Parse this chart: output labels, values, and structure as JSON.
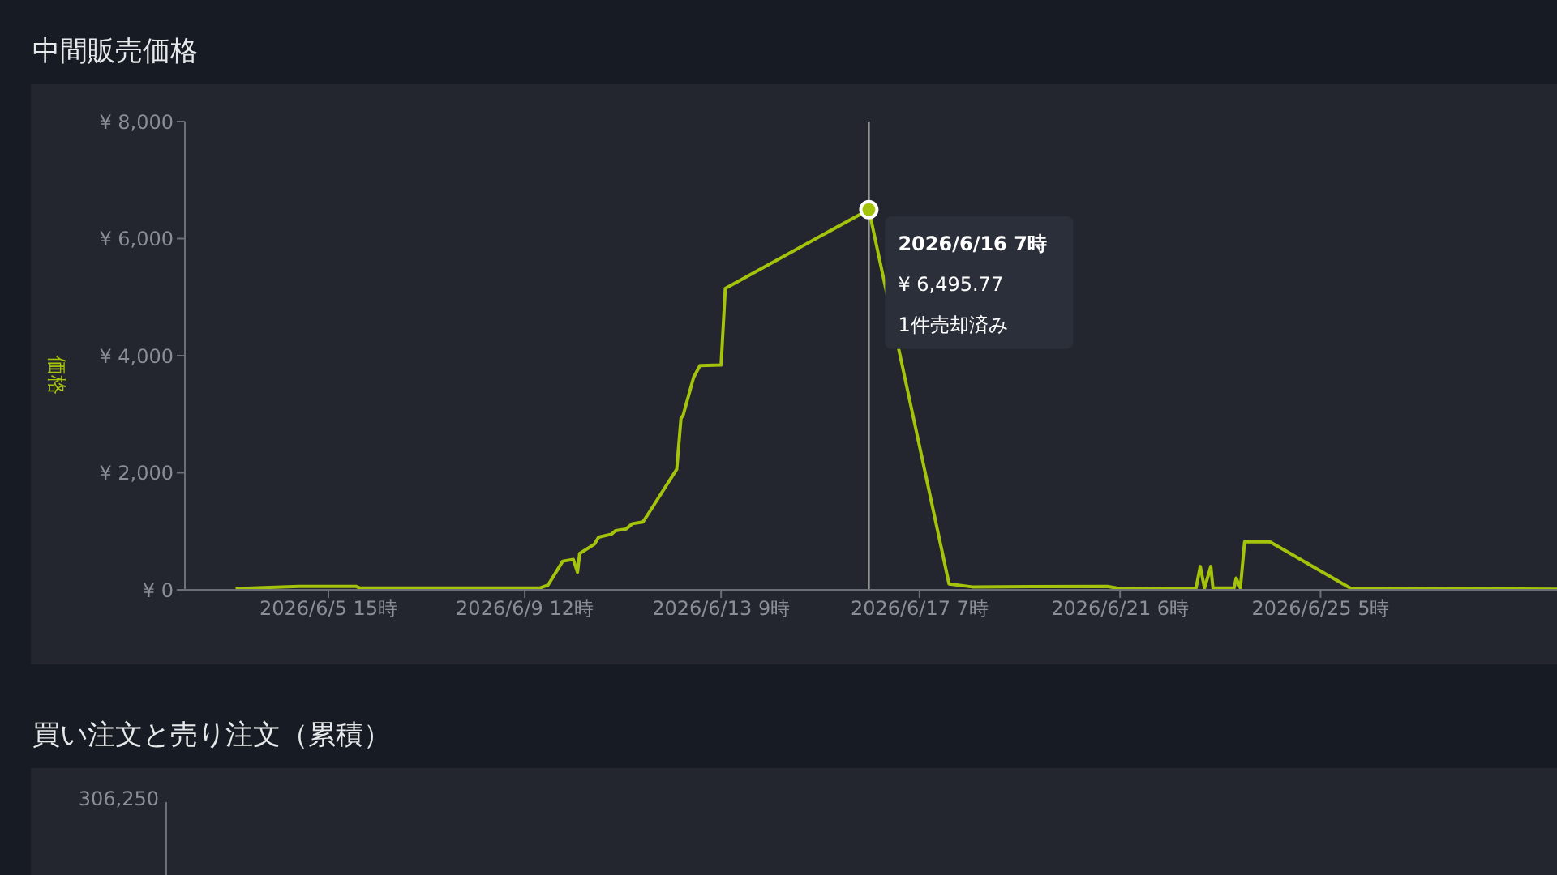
{
  "chart_data": [
    {
      "type": "line",
      "title": "中間販売価格",
      "ylabel": "価格",
      "x": [
        "2026-06-03T19:00",
        "2026-06-05T01:00",
        "2026-06-06T04:00",
        "2026-06-06T06:00",
        "2026-06-09T19:00",
        "2026-06-09T23:00",
        "2026-06-10T06:00",
        "2026-06-10T11:00",
        "2026-06-10T13:00",
        "2026-06-10T14:00",
        "2026-06-10T21:00",
        "2026-06-10T23:00",
        "2026-06-11T05:00",
        "2026-06-11T07:00",
        "2026-06-11T12:00",
        "2026-06-11T15:00",
        "2026-06-11T20:00",
        "2026-06-11T22:00",
        "2026-06-12T12:00",
        "2026-06-12T14:00",
        "2026-06-12T15:00",
        "2026-06-12T20:00",
        "2026-06-12T23:00",
        "2026-06-13T09:00",
        "2026-06-13T11:00",
        "2026-06-16T07:00",
        "2026-06-17T21:00",
        "2026-06-18T08:00",
        "2026-06-21T00:00",
        "2026-06-21T06:00",
        "2026-06-22T18:00",
        "2026-06-22T20:00",
        "2026-06-22T22:00",
        "2026-06-23T01:00",
        "2026-06-23T02:00",
        "2026-06-23T12:00",
        "2026-06-23T13:00",
        "2026-06-23T15:00",
        "2026-06-23T17:00",
        "2026-06-24T05:00",
        "2026-06-25T19:00",
        "2026-06-29T21:00"
      ],
      "series": [
        {
          "color": "#a4c40c",
          "values": [
            20,
            60,
            60,
            30,
            30,
            80,
            490,
            520,
            300,
            620,
            780,
            900,
            950,
            1010,
            1040,
            1130,
            1160,
            1270,
            2060,
            2930,
            2980,
            3630,
            3830,
            3840,
            5150,
            6495.77,
            100,
            50,
            60,
            20,
            30,
            400,
            30,
            400,
            30,
            30,
            200,
            30,
            820,
            820,
            30,
            10
          ]
        }
      ],
      "xlim": [
        "2026-06-02T19:00",
        "2026-06-29T21:00"
      ],
      "xticks": [
        {
          "value": "2026-06-05T15:00",
          "label": "2026/6/5 15時"
        },
        {
          "value": "2026-06-09T12:00",
          "label": "2026/6/9 12時"
        },
        {
          "value": "2026-06-13T09:00",
          "label": "2026/6/13 9時"
        },
        {
          "value": "2026-06-17T07:00",
          "label": "2026/6/17 7時"
        },
        {
          "value": "2026-06-21T06:00",
          "label": "2026/6/21 6時"
        },
        {
          "value": "2026-06-25T05:00",
          "label": "2026/6/25 5時"
        }
      ],
      "ylim": [
        0,
        8000
      ],
      "yticks": [
        {
          "value": 0,
          "label": "¥ 0"
        },
        {
          "value": 2000,
          "label": "¥ 2,000"
        },
        {
          "value": 4000,
          "label": "¥ 4,000"
        },
        {
          "value": 6000,
          "label": "¥ 6,000"
        },
        {
          "value": 8000,
          "label": "¥ 8,000"
        }
      ],
      "ref_lines": [
        {
          "axis": "x",
          "value": "2026-06-16T07:00",
          "color": "#d8d8d8"
        }
      ],
      "annotations": [
        {
          "text": "2026/6/16 7時\n¥ 6,495.77\n1件売却済み",
          "x": "2026-06-16T07:00",
          "y": 6495.77
        }
      ],
      "grid": false,
      "legend": false,
      "marker": "none",
      "line_style": "solid"
    },
    {
      "type": "other",
      "title": "買い注文と売り注文（累積）",
      "annotations": [
        "306,250"
      ]
    }
  ]
}
